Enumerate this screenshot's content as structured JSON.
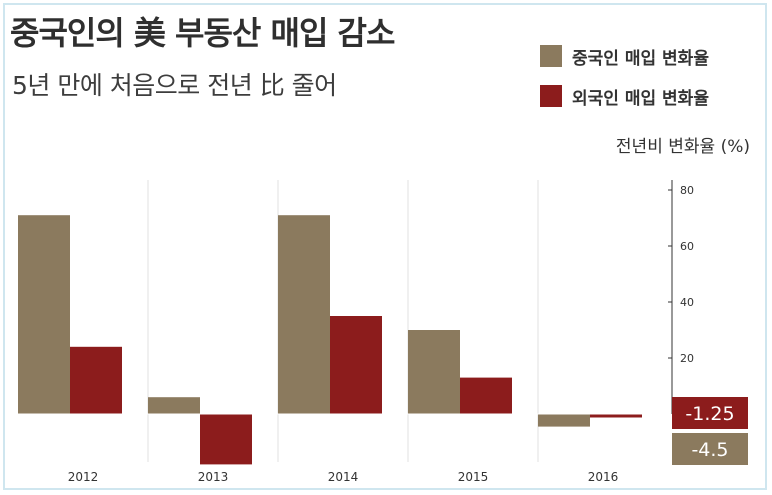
{
  "chart_data": {
    "type": "bar",
    "title": "중국인의 美 부동산 매입 감소",
    "subtitle": "5년 만에 처음으로 전년 比 줄어",
    "ylabel": "전년비 변화율 (%)",
    "categories": [
      "2012",
      "2013",
      "2014",
      "2015",
      "2016"
    ],
    "series": [
      {
        "name": "중국인 매입 변화율",
        "color": "#8b7a5e",
        "values": [
          71,
          6,
          71,
          30,
          -4.5
        ]
      },
      {
        "name": "외국인 매입 변화율",
        "color": "#8c1c1c",
        "values": [
          24,
          -18,
          35,
          13,
          -1.25
        ]
      }
    ],
    "yticks": [
      "80",
      "60",
      "40",
      "20"
    ],
    "ylim": [
      -20,
      80
    ],
    "grid": "vertical",
    "legend": "top-right",
    "annotations": [
      "-1.25",
      "-4.5"
    ]
  }
}
